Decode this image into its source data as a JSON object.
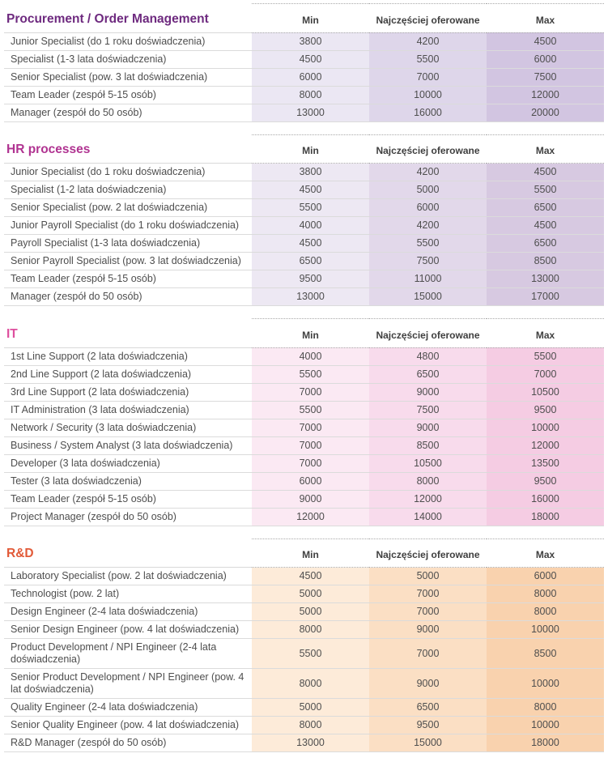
{
  "columns": {
    "min": "Min",
    "typical": "Najczęściej oferowane",
    "max": "Max"
  },
  "sections": [
    {
      "title": "Procurement / Order Management",
      "title_color": "#6e2a7f",
      "column_colors": [
        "#ebe7f3",
        "#ded6ea",
        "#d2c5e1"
      ],
      "rows": [
        {
          "label": "Junior Specialist (do 1 roku doświadczenia)",
          "min": "3800",
          "typical": "4200",
          "max": "4500"
        },
        {
          "label": "Specialist (1-3 lata doświadczenia)",
          "min": "4500",
          "typical": "5500",
          "max": "6000"
        },
        {
          "label": "Senior Specialist (pow. 3 lat doświadczenia)",
          "min": "6000",
          "typical": "7000",
          "max": "7500"
        },
        {
          "label": "Team Leader (zespół 5-15 osób)",
          "min": "8000",
          "typical": "10000",
          "max": "12000"
        },
        {
          "label": "Manager (zespół do 50 osób)",
          "min": "13000",
          "typical": "16000",
          "max": "20000"
        }
      ]
    },
    {
      "title": "HR processes",
      "title_color": "#b03391",
      "column_colors": [
        "#ede8f3",
        "#e2d8ea",
        "#d7c9e1"
      ],
      "rows": [
        {
          "label": "Junior Specialist (do 1 roku doświadczenia)",
          "min": "3800",
          "typical": "4200",
          "max": "4500"
        },
        {
          "label": "Specialist (1-2 lata doświadczenia)",
          "min": "4500",
          "typical": "5000",
          "max": "5500"
        },
        {
          "label": "Senior Specialist (pow. 2 lat doświadczenia)",
          "min": "5500",
          "typical": "6000",
          "max": "6500"
        },
        {
          "label": "Junior Payroll Specialist (do 1 roku doświadczenia)",
          "min": "4000",
          "typical": "4200",
          "max": "4500"
        },
        {
          "label": "Payroll Specialist (1-3 lata doświadczenia)",
          "min": "4500",
          "typical": "5500",
          "max": "6500"
        },
        {
          "label": "Senior Payroll Specialist (pow. 3 lat doświadczenia)",
          "min": "6500",
          "typical": "7500",
          "max": "8500"
        },
        {
          "label": "Team Leader (zespół 5-15 osób)",
          "min": "9500",
          "typical": "11000",
          "max": "13000"
        },
        {
          "label": "Manager (zespół do 50 osób)",
          "min": "13000",
          "typical": "15000",
          "max": "17000"
        }
      ]
    },
    {
      "title": "IT",
      "title_color": "#de4f9e",
      "column_colors": [
        "#fbe9f3",
        "#f8dbec",
        "#f5cce3"
      ],
      "rows": [
        {
          "label": "1st Line Support (2 lata doświadczenia)",
          "min": "4000",
          "typical": "4800",
          "max": "5500"
        },
        {
          "label": "2nd Line Support (2 lata doświadczenia)",
          "min": "5500",
          "typical": "6500",
          "max": "7000"
        },
        {
          "label": "3rd Line Support (2 lata doświadczenia)",
          "min": "7000",
          "typical": "9000",
          "max": "10500"
        },
        {
          "label": "IT Administration (3 lata doświadczenia)",
          "min": "5500",
          "typical": "7500",
          "max": "9500"
        },
        {
          "label": "Network / Security (3 lata doświadczenia)",
          "min": "7000",
          "typical": "9000",
          "max": "10000"
        },
        {
          "label": "Business / System Analyst (3 lata doświadczenia)",
          "min": "7000",
          "typical": "8500",
          "max": "12000"
        },
        {
          "label": "Developer (3 lata doświadczenia)",
          "min": "7000",
          "typical": "10500",
          "max": "13500"
        },
        {
          "label": "Tester (3 lata doświadczenia)",
          "min": "6000",
          "typical": "8000",
          "max": "9500"
        },
        {
          "label": "Team Leader (zespół 5-15 osób)",
          "min": "9000",
          "typical": "12000",
          "max": "16000"
        },
        {
          "label": "Project Manager (zespół do 50 osób)",
          "min": "12000",
          "typical": "14000",
          "max": "18000"
        }
      ]
    },
    {
      "title": "R&D",
      "title_color": "#e25a38",
      "column_colors": [
        "#fdebd9",
        "#fbdfc4",
        "#f9d2ae"
      ],
      "rows": [
        {
          "label": "Laboratory Specialist (pow. 2 lat doświadczenia)",
          "min": "4500",
          "typical": "5000",
          "max": "6000"
        },
        {
          "label": "Technologist (pow. 2 lat)",
          "min": "5000",
          "typical": "7000",
          "max": "8000"
        },
        {
          "label": "Design Engineer (2-4 lata doświadczenia)",
          "min": "5000",
          "typical": "7000",
          "max": "8000"
        },
        {
          "label": "Senior Design Engineer (pow. 4 lat doświadczenia)",
          "min": "8000",
          "typical": "9000",
          "max": "10000"
        },
        {
          "label": "Product Development / NPI Engineer (2-4 lata doświadczenia)",
          "min": "5500",
          "typical": "7000",
          "max": "8500"
        },
        {
          "label": "Senior Product Development / NPI Engineer (pow. 4 lat doświadczenia)",
          "min": "8000",
          "typical": "9000",
          "max": "10000"
        },
        {
          "label": "Quality Engineer (2-4 lata doświadczenia)",
          "min": "5000",
          "typical": "6500",
          "max": "8000"
        },
        {
          "label": "Senior Quality Engineer (pow. 4 lat doświadczenia)",
          "min": "8000",
          "typical": "9500",
          "max": "10000"
        },
        {
          "label": "R&D Manager (zespół do 50 osób)",
          "min": "13000",
          "typical": "15000",
          "max": "18000"
        }
      ]
    }
  ]
}
